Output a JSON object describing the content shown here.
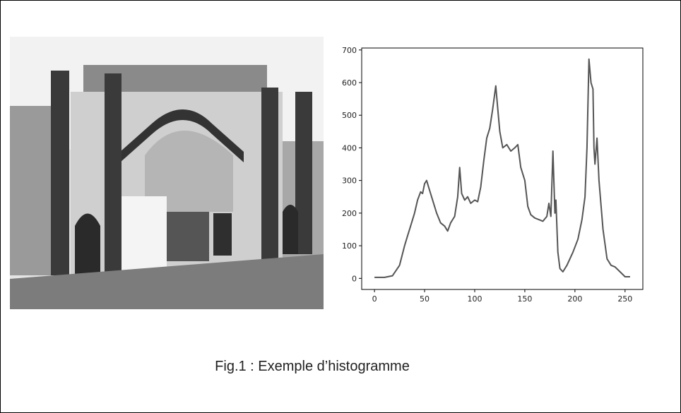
{
  "chart_data": {
    "type": "line",
    "x": [
      0,
      10,
      18,
      25,
      30,
      33,
      36,
      40,
      43,
      46,
      48,
      50,
      52,
      55,
      58,
      62,
      66,
      70,
      73,
      76,
      80,
      83,
      85,
      87,
      90,
      93,
      96,
      100,
      103,
      106,
      109,
      112,
      115,
      118,
      121,
      123,
      125,
      128,
      132,
      136,
      140,
      143,
      146,
      150,
      153,
      156,
      160,
      164,
      168,
      172,
      174,
      176,
      178,
      180,
      181,
      183,
      185,
      188,
      192,
      198,
      203,
      207,
      210,
      212,
      214,
      216,
      218,
      219,
      220,
      222,
      224,
      228,
      232,
      236,
      240,
      245,
      250,
      255
    ],
    "values": [
      3,
      3,
      8,
      40,
      100,
      130,
      160,
      200,
      240,
      265,
      260,
      290,
      300,
      270,
      240,
      200,
      170,
      160,
      145,
      170,
      190,
      250,
      340,
      260,
      240,
      250,
      230,
      240,
      235,
      280,
      360,
      430,
      460,
      520,
      590,
      520,
      450,
      400,
      410,
      390,
      400,
      410,
      340,
      300,
      220,
      195,
      185,
      180,
      175,
      190,
      230,
      190,
      390,
      200,
      240,
      80,
      30,
      20,
      40,
      80,
      120,
      180,
      250,
      400,
      672,
      600,
      580,
      400,
      350,
      430,
      300,
      150,
      60,
      40,
      35,
      20,
      5,
      5
    ],
    "color": "#555555",
    "xlim": [
      -12.75,
      267.75
    ],
    "ylim": [
      -34,
      706
    ],
    "xticks": [
      0,
      50,
      100,
      150,
      200,
      250
    ],
    "yticks": [
      0,
      100,
      200,
      300,
      400,
      500,
      600,
      700
    ]
  },
  "caption": "Fig.1 : Exemple d’histogramme"
}
